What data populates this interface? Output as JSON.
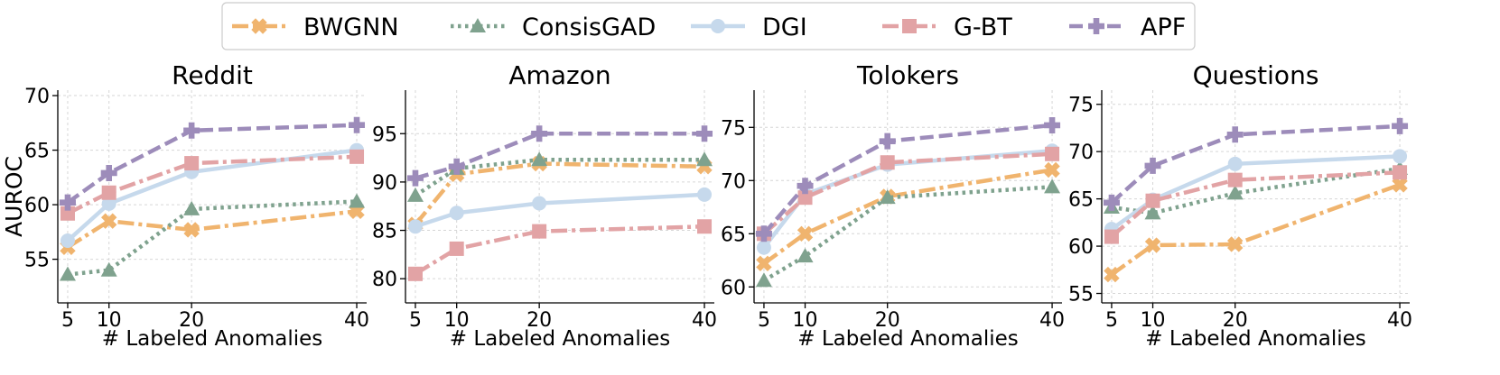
{
  "legend": {
    "placement": "top-center",
    "entries": [
      {
        "name": "BWGNN",
        "color": "#F0B46E",
        "marker": "x-filled",
        "dash": "dashdot"
      },
      {
        "name": "ConsisGAD",
        "color": "#7FA28E",
        "marker": "triangle",
        "dash": "dotted"
      },
      {
        "name": "DGI",
        "color": "#C6D9EC",
        "marker": "circle",
        "dash": "solid"
      },
      {
        "name": "G-BT",
        "color": "#E2A3A5",
        "marker": "square",
        "dash": "dashdot"
      },
      {
        "name": "APF",
        "color": "#9D8CBA",
        "marker": "plus-filled",
        "dash": "dashed"
      }
    ]
  },
  "chart_data": [
    {
      "type": "line",
      "title": "Reddit",
      "xlabel": "# Labeled Anomalies",
      "ylabel": "AUROC",
      "x": [
        5,
        10,
        20,
        40
      ],
      "xticks": [
        "5",
        "10",
        "20",
        "40"
      ],
      "ylim": [
        51,
        70.5
      ],
      "yticks": [
        55,
        60,
        65,
        70
      ],
      "grid": true,
      "series": [
        {
          "name": "BWGNN",
          "values": [
            56.1,
            58.5,
            57.7,
            59.4
          ]
        },
        {
          "name": "ConsisGAD",
          "values": [
            53.6,
            54.0,
            59.6,
            60.3
          ]
        },
        {
          "name": "DGI",
          "values": [
            56.7,
            60.1,
            63.0,
            65.0
          ]
        },
        {
          "name": "G-BT",
          "values": [
            59.2,
            61.1,
            63.8,
            64.4
          ]
        },
        {
          "name": "APF",
          "values": [
            60.2,
            62.9,
            66.8,
            67.3
          ]
        }
      ]
    },
    {
      "type": "line",
      "title": "Amazon",
      "xlabel": "# Labeled Anomalies",
      "ylabel": "",
      "x": [
        5,
        10,
        20,
        40
      ],
      "xticks": [
        "5",
        "10",
        "20",
        "40"
      ],
      "ylim": [
        77.5,
        99.5
      ],
      "yticks": [
        80,
        85,
        90,
        95
      ],
      "grid": true,
      "series": [
        {
          "name": "BWGNN",
          "values": [
            85.6,
            90.8,
            91.9,
            91.6
          ]
        },
        {
          "name": "ConsisGAD",
          "values": [
            88.6,
            91.4,
            92.3,
            92.3
          ]
        },
        {
          "name": "DGI",
          "values": [
            85.4,
            86.8,
            87.8,
            88.7
          ]
        },
        {
          "name": "G-BT",
          "values": [
            80.5,
            83.1,
            84.9,
            85.4
          ]
        },
        {
          "name": "APF",
          "values": [
            90.4,
            91.6,
            95.0,
            95.0
          ]
        }
      ]
    },
    {
      "type": "line",
      "title": "Tolokers",
      "xlabel": "# Labeled Anomalies",
      "ylabel": "",
      "x": [
        5,
        10,
        20,
        40
      ],
      "xticks": [
        "5",
        "10",
        "20",
        "40"
      ],
      "ylim": [
        58.5,
        78.5
      ],
      "yticks": [
        60,
        65,
        70,
        75
      ],
      "grid": true,
      "series": [
        {
          "name": "BWGNN",
          "values": [
            62.2,
            65.0,
            68.5,
            71.0
          ]
        },
        {
          "name": "ConsisGAD",
          "values": [
            60.6,
            62.9,
            68.4,
            69.4
          ]
        },
        {
          "name": "DGI",
          "values": [
            63.7,
            68.7,
            71.5,
            72.8
          ]
        },
        {
          "name": "G-BT",
          "values": [
            65.0,
            68.4,
            71.7,
            72.5
          ]
        },
        {
          "name": "APF",
          "values": [
            65.0,
            69.5,
            73.7,
            75.2
          ]
        }
      ]
    },
    {
      "type": "line",
      "title": "Questions",
      "xlabel": "# Labeled Anomalies",
      "ylabel": "",
      "x": [
        5,
        10,
        20,
        40
      ],
      "xticks": [
        "5",
        "10",
        "20",
        "40"
      ],
      "ylim": [
        54,
        76.5
      ],
      "yticks": [
        55,
        60,
        65,
        70,
        75
      ],
      "grid": true,
      "series": [
        {
          "name": "BWGNN",
          "values": [
            57.0,
            60.1,
            60.2,
            66.5
          ]
        },
        {
          "name": "ConsisGAD",
          "values": [
            64.1,
            63.5,
            65.6,
            68.2
          ]
        },
        {
          "name": "DGI",
          "values": [
            61.8,
            64.9,
            68.7,
            69.5
          ]
        },
        {
          "name": "G-BT",
          "values": [
            61.0,
            64.8,
            67.0,
            67.8
          ]
        },
        {
          "name": "APF",
          "values": [
            64.6,
            68.5,
            71.8,
            72.7
          ]
        }
      ]
    }
  ]
}
